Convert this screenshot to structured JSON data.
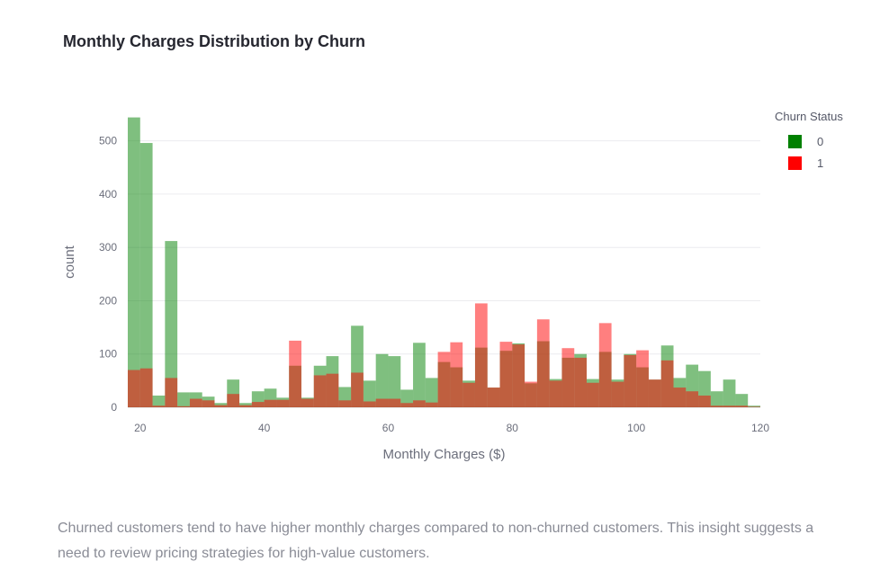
{
  "title": "Monthly Charges Distribution by Churn",
  "caption": "Churned customers tend to have higher monthly charges compared to non-churned customers. This insight suggests a need to review pricing strategies for high-value customers.",
  "legend": {
    "title": "Churn Status",
    "items": [
      {
        "label": "0",
        "color": "#008000"
      },
      {
        "label": "1",
        "color": "#ff0000"
      }
    ]
  },
  "chart_data": {
    "type": "bar",
    "barmode": "overlay",
    "title": "Monthly Charges Distribution by Churn",
    "xlabel": "Monthly Charges ($)",
    "ylabel": "count",
    "xlim": [
      18,
      120
    ],
    "ylim": [
      0,
      545
    ],
    "x_ticks": [
      20,
      40,
      60,
      80,
      100,
      120
    ],
    "y_ticks": [
      0,
      100,
      200,
      300,
      400,
      500
    ],
    "grid": true,
    "legend_position": "right",
    "bin_start": 18,
    "bin_width": 2,
    "series": [
      {
        "name": "0",
        "color": "#008000",
        "opacity": 0.5,
        "values": [
          544,
          496,
          22,
          312,
          28,
          28,
          20,
          8,
          52,
          8,
          30,
          35,
          18,
          78,
          18,
          78,
          96,
          38,
          153,
          50,
          100,
          96,
          33,
          121,
          55,
          85,
          75,
          50,
          112,
          37,
          106,
          120,
          45,
          124,
          53,
          93,
          100,
          53,
          104,
          52,
          100,
          75,
          52,
          116,
          55,
          80,
          68,
          30,
          52,
          25,
          3
        ]
      },
      {
        "name": "1",
        "color": "#ff0000",
        "opacity": 0.5,
        "values": [
          70,
          73,
          3,
          55,
          2,
          16,
          13,
          4,
          25,
          4,
          10,
          14,
          14,
          125,
          16,
          60,
          63,
          13,
          65,
          11,
          16,
          16,
          8,
          13,
          9,
          104,
          122,
          46,
          195,
          37,
          123,
          118,
          48,
          165,
          50,
          111,
          93,
          46,
          158,
          48,
          98,
          107,
          52,
          88,
          37,
          30,
          22,
          3,
          3,
          3,
          1
        ]
      }
    ]
  }
}
